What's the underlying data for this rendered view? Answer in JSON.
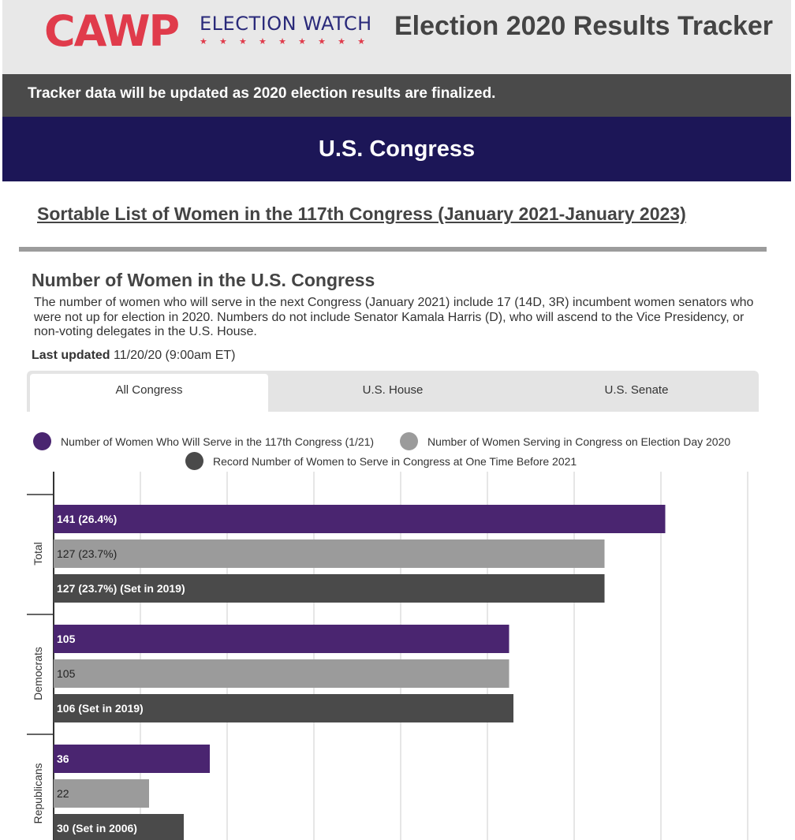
{
  "header": {
    "logo_main": "CAWP",
    "logo_sub": "ELECTION WATCH",
    "app_title": "Election 2020 Results Tracker"
  },
  "notice": "Tracker data will be updated as 2020 election results are finalized.",
  "section_title": "U.S. Congress",
  "sortable_link": "Sortable List of Women in the 117th Congress (January 2021-January 2023)",
  "chart_heading": "Number of Women in the U.S. Congress",
  "description": "The number of women who will serve in the next Congress (January 2021) include 17 (14D, 3R) incumbent women senators who were not up for election in 2020. Numbers do not include Senator Kamala Harris (D), who will ascend to the Vice Presidency, or non-voting delegates in the U.S. House.",
  "updated_label": "Last updated",
  "updated_value": "11/20/20 (9:00am ET)",
  "tabs": [
    {
      "label": "All Congress",
      "active": true
    },
    {
      "label": "U.S. House",
      "active": false
    },
    {
      "label": "U.S. Senate",
      "active": false
    }
  ],
  "colors": {
    "purple": "#4a2570",
    "gray": "#9b9b9b",
    "dark": "#4a4a4a",
    "accent_red": "#e03b4b",
    "navy": "#1c1657"
  },
  "chart_data": {
    "type": "bar",
    "orientation": "horizontal",
    "categories": [
      "Total",
      "Democrats",
      "Republicans"
    ],
    "series": [
      {
        "name": "Number of Women Who Will Serve in the 117th Congress (1/21)",
        "color": "#4a2570",
        "values": [
          141,
          105,
          36
        ],
        "labels": [
          "141 (26.4%)",
          "105",
          "36"
        ]
      },
      {
        "name": "Number of Women Serving in Congress on Election Day 2020",
        "color": "#9b9b9b",
        "values": [
          127,
          105,
          22
        ],
        "labels": [
          "127 (23.7%)",
          "105",
          "22"
        ]
      },
      {
        "name": "Record Number of Women to Serve in Congress at One Time Before 2021",
        "color": "#4a4a4a",
        "values": [
          127,
          106,
          30
        ],
        "labels": [
          "127 (23.7%) (Set in 2019)",
          "106 (Set in 2019)",
          "30 (Set in 2006)"
        ]
      }
    ],
    "xlim": [
      0,
      160
    ],
    "grid": true,
    "legend": "top"
  }
}
